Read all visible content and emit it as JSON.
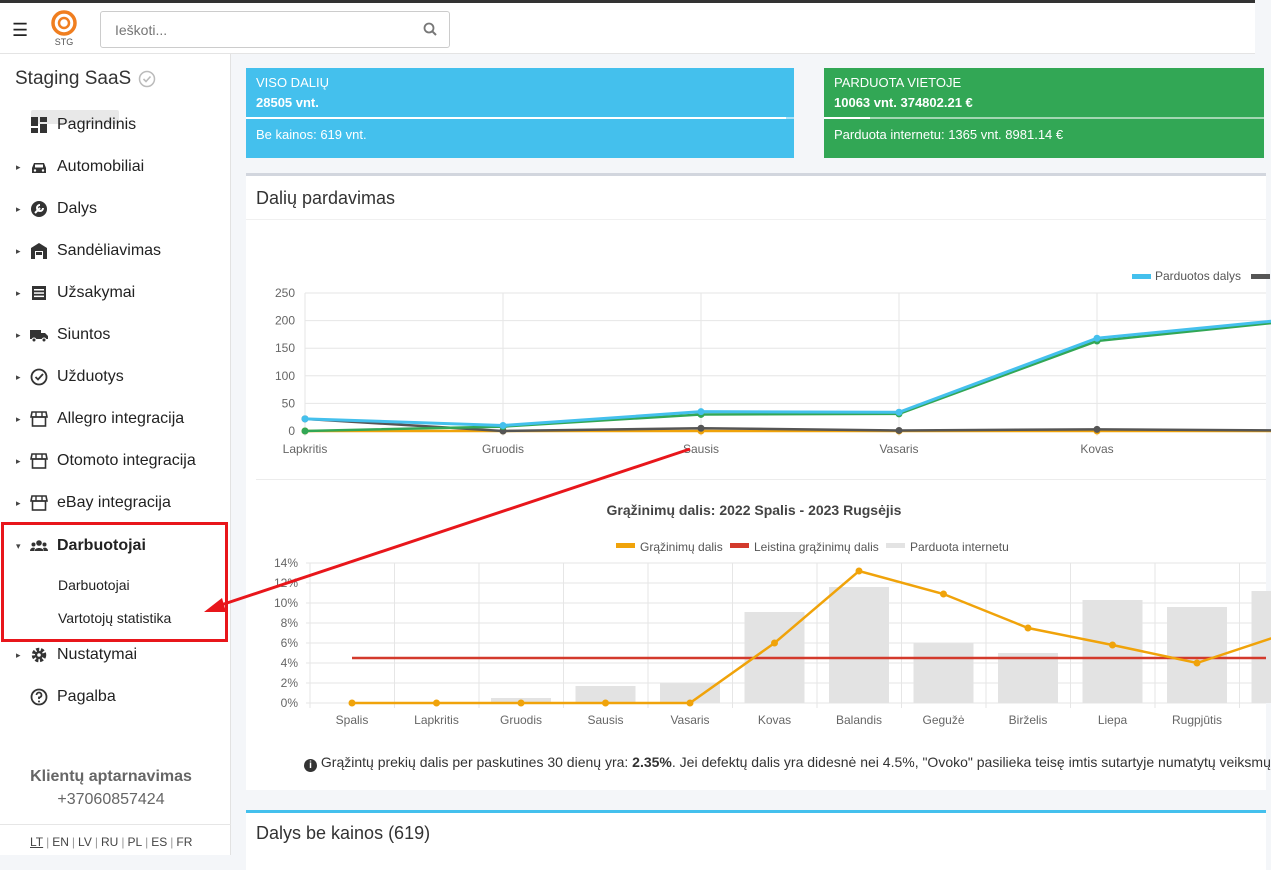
{
  "topbar": {
    "logo_text": "STG",
    "search_placeholder": "Ieškoti..."
  },
  "sidebar": {
    "org_name": "Staging SaaS",
    "items": [
      {
        "label": "Pagrindinis",
        "icon": "dashboard-icon"
      },
      {
        "label": "Automobiliai",
        "icon": "car-icon"
      },
      {
        "label": "Dalys",
        "icon": "wrench-icon"
      },
      {
        "label": "Sandėliavimas",
        "icon": "warehouse-icon"
      },
      {
        "label": "Užsakymai",
        "icon": "list-icon"
      },
      {
        "label": "Siuntos",
        "icon": "truck-icon"
      },
      {
        "label": "Užduotys",
        "icon": "check-circle-icon"
      },
      {
        "label": "Allegro integracija",
        "icon": "store-icon"
      },
      {
        "label": "Otomoto integracija",
        "icon": "store-icon"
      },
      {
        "label": "eBay integracija",
        "icon": "store-icon"
      },
      {
        "label": "Darbuotojai",
        "icon": "users-icon"
      },
      {
        "label": "Nustatymai",
        "icon": "gear-icon"
      },
      {
        "label": "Pagalba",
        "icon": "question-circle-icon"
      }
    ],
    "subitems": [
      "Darbuotojai",
      "Vartotojų statistika"
    ],
    "support_title": "Klientų aptarnavimas",
    "support_phone": "+37060857424",
    "languages": [
      "LT",
      "EN",
      "LV",
      "RU",
      "PL",
      "ES",
      "FR"
    ]
  },
  "stats": {
    "total_title": "VISO DALIŲ",
    "total_value": "28505 vnt.",
    "total_sub": "Be kainos: 619 vnt.",
    "sold_title": "PARDUOTA VIETOJE",
    "sold_value": "10063 vnt. 374802.21 €",
    "sold_sub": "Parduota internetu: 1365 vnt. 8981.14 €",
    "colors": {
      "blue": "#44c0ed",
      "green": "#32a755"
    }
  },
  "sales_card": {
    "title": "Dalių pardavimas",
    "info_prefix": "Grąžintų prekių dalis per paskutines 30 dienų yra: ",
    "info_value": "2.35%",
    "info_suffix": ". Jei defektų dalis yra didesnė nei 4.5%, \"Ovoko\" pasilieka teisę imtis sutartyje numatytų veiksmų"
  },
  "parts_card": {
    "title": "Dalys be kainos (619)"
  },
  "chart_data": [
    {
      "type": "line",
      "categories": [
        "Lapkritis",
        "Gruodis",
        "Sausis",
        "Vasaris",
        "Kovas",
        ""
      ],
      "ylim": [
        0,
        250
      ],
      "yticks": [
        0,
        50,
        100,
        150,
        200,
        250
      ],
      "grid": true,
      "legend_position": "top-right",
      "series": [
        {
          "name": "Parduotos dalys",
          "color": "#44c0ed",
          "values": [
            22,
            10,
            35,
            34,
            168,
            203
          ]
        },
        {
          "color": "#32a755",
          "values": [
            0,
            8,
            30,
            31,
            163,
            200
          ]
        },
        {
          "color": "#555555",
          "values": [
            22,
            0,
            5,
            1,
            3,
            1
          ]
        },
        {
          "color": "#f0a30a",
          "values": [
            0,
            0,
            0,
            0,
            0,
            0
          ]
        }
      ]
    },
    {
      "type": "bar",
      "title": "Grąžinimų dalis: 2022 Spalis - 2023 Rugsėjis",
      "categories": [
        "Spalis",
        "Lapkritis",
        "Gruodis",
        "Sausis",
        "Vasaris",
        "Kovas",
        "Balandis",
        "Gegužė",
        "Birželis",
        "Liepa",
        "Rugpjūtis",
        ""
      ],
      "ylim": [
        0,
        14
      ],
      "yticks": [
        "0%",
        "2%",
        "4%",
        "6%",
        "8%",
        "10%",
        "12%",
        "14%"
      ],
      "grid": true,
      "legend_position": "top-center",
      "series": [
        {
          "name": "Grąžinimų dalis",
          "type": "line",
          "color": "#f0a30a",
          "values": [
            0,
            0,
            0,
            0,
            0,
            6.0,
            13.2,
            10.9,
            7.5,
            5.8,
            4.0,
            6.8
          ]
        },
        {
          "name": "Leistina grąžinimų dalis",
          "type": "line",
          "color": "#d33a2c",
          "values": [
            4.5,
            4.5,
            4.5,
            4.5,
            4.5,
            4.5,
            4.5,
            4.5,
            4.5,
            4.5,
            4.5,
            4.5
          ]
        },
        {
          "name": "Parduota internetu",
          "type": "bar",
          "color": "#e3e3e3",
          "values": [
            0,
            0,
            0.5,
            1.7,
            2.0,
            9.1,
            11.6,
            6.0,
            5.0,
            10.3,
            9.6,
            11.2
          ]
        }
      ]
    }
  ]
}
